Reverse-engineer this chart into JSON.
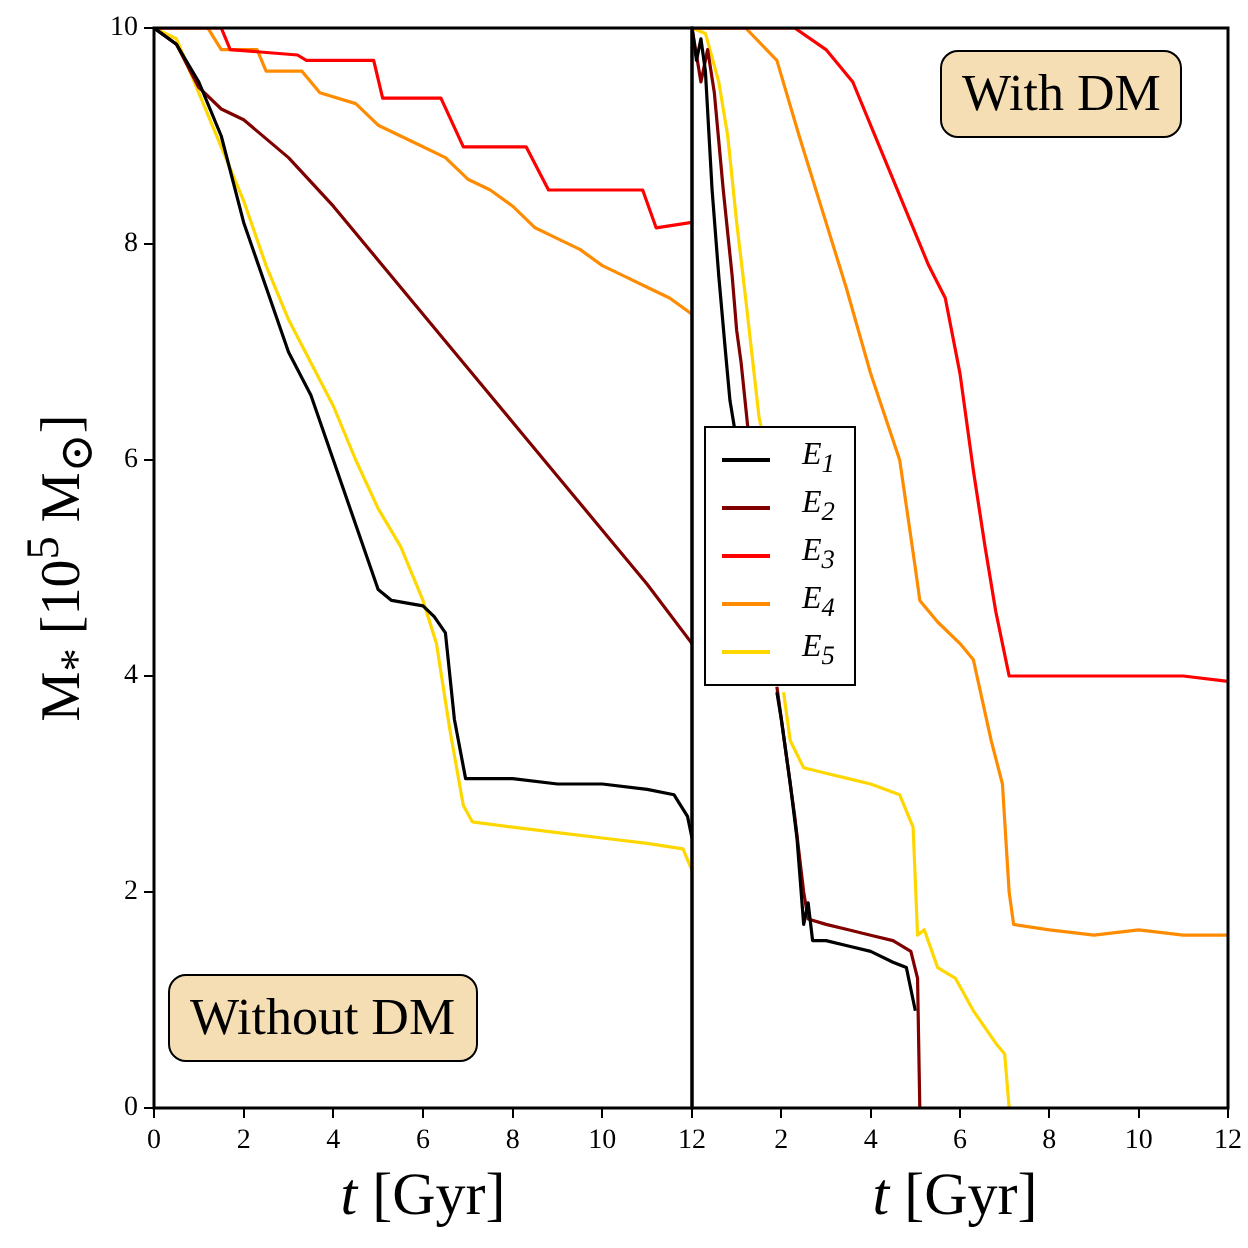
{
  "chart_data": [
    {
      "type": "line",
      "xlabel": "t [Gyr]",
      "ylabel": "M$_{*}$ [10$^{5}$ M$_{⊙}$]",
      "annotations": [
        "Without DM"
      ],
      "xlim": [
        0,
        12
      ],
      "xticks": [
        0,
        2,
        4,
        6,
        8,
        10,
        12
      ],
      "ylim": [
        0,
        10
      ],
      "yticks": [
        0,
        2,
        4,
        6,
        8,
        10
      ],
      "grid": false,
      "legend": false,
      "marker": "none",
      "line_style": "solid",
      "series": [
        {
          "color": "#000000",
          "x": [
            0,
            0.5,
            1,
            1.5,
            2,
            2.5,
            3,
            3.5,
            4,
            4.5,
            5,
            5.3,
            6,
            6.25,
            6.5,
            6.7,
            6.95,
            7.5,
            8,
            9,
            10,
            11,
            11.6,
            11.9,
            12
          ],
          "values": [
            10,
            9.85,
            9.5,
            9.0,
            8.2,
            7.6,
            7.0,
            6.6,
            6.0,
            5.4,
            4.8,
            4.7,
            4.65,
            4.55,
            4.4,
            3.6,
            3.05,
            3.05,
            3.05,
            3.0,
            3.0,
            2.95,
            2.9,
            2.7,
            2.5
          ]
        },
        {
          "color": "#800000",
          "x": [
            0,
            0.5,
            1,
            1.5,
            2,
            3,
            4,
            5,
            6,
            7,
            8,
            9,
            10,
            11,
            12
          ],
          "values": [
            10,
            9.85,
            9.45,
            9.25,
            9.15,
            8.8,
            8.35,
            7.85,
            7.35,
            6.85,
            6.35,
            5.85,
            5.35,
            4.85,
            4.3
          ]
        },
        {
          "color": "#ff0000",
          "x": [
            0,
            1.5,
            1.7,
            3.2,
            3.4,
            4.9,
            5.1,
            6.4,
            6.9,
            8.3,
            8.8,
            10.9,
            11.2,
            12
          ],
          "values": [
            10,
            10,
            9.8,
            9.75,
            9.7,
            9.7,
            9.35,
            9.35,
            8.9,
            8.9,
            8.5,
            8.5,
            8.15,
            8.2
          ]
        },
        {
          "color": "#ff8c00",
          "x": [
            0,
            1.2,
            1.5,
            2.3,
            2.5,
            3.3,
            3.7,
            4.5,
            5,
            5.5,
            6,
            6.5,
            7,
            7.5,
            8,
            8.5,
            9,
            9.5,
            10,
            10.5,
            11,
            11.5,
            12
          ],
          "values": [
            10,
            10,
            9.8,
            9.8,
            9.6,
            9.6,
            9.4,
            9.3,
            9.1,
            9.0,
            8.9,
            8.8,
            8.6,
            8.5,
            8.35,
            8.15,
            8.05,
            7.95,
            7.8,
            7.7,
            7.6,
            7.5,
            7.35
          ]
        },
        {
          "color": "#ffd700",
          "x": [
            0,
            0.5,
            1,
            1.5,
            2,
            2.5,
            3,
            3.5,
            4,
            4.5,
            5,
            5.5,
            6,
            6.3,
            6.6,
            6.9,
            7.1,
            8,
            9,
            10,
            11,
            11.8,
            12
          ],
          "values": [
            10,
            9.9,
            9.4,
            8.9,
            8.4,
            7.8,
            7.3,
            6.9,
            6.5,
            6.0,
            5.55,
            5.2,
            4.7,
            4.3,
            3.5,
            2.8,
            2.65,
            2.6,
            2.55,
            2.5,
            2.45,
            2.4,
            2.2
          ]
        }
      ]
    },
    {
      "type": "line",
      "xlabel": "t [Gyr]",
      "annotations": [
        "With DM"
      ],
      "xlim": [
        0,
        12
      ],
      "xticks": [
        {
          "value": 0,
          "label": null
        },
        2,
        4,
        6,
        8,
        10,
        12
      ],
      "ylim": [
        0,
        10
      ],
      "yticks": [
        0,
        2,
        4,
        6,
        8,
        10
      ],
      "tick_labels": "x",
      "grid": false,
      "legend": "center left",
      "marker": "none",
      "line_style": "solid",
      "series": [
        {
          "name": "E$_{1}$",
          "color": "#000000",
          "x": [
            0,
            0.1,
            0.2,
            0.3,
            0.45,
            0.6,
            0.75,
            0.85,
            0.95,
            1.2,
            1.9,
            2.0,
            2.2,
            2.35,
            2.5,
            2.6,
            2.7,
            3,
            3.5,
            4,
            4.5,
            4.8,
            4.95,
            5.0
          ],
          "values": [
            10,
            9.7,
            9.9,
            9.6,
            8.5,
            7.7,
            7.0,
            6.55,
            6.3,
            null,
            3.85,
            3.6,
            3.0,
            2.5,
            1.7,
            1.9,
            1.55,
            1.55,
            1.5,
            1.45,
            1.35,
            1.3,
            1.0,
            0.9
          ]
        },
        {
          "name": "E$_{2}$",
          "color": "#800000",
          "x": [
            0,
            0.2,
            0.35,
            0.5,
            0.7,
            0.9,
            1.0,
            1.1,
            1.2,
            1.25,
            1.5,
            1.9,
            2.3,
            2.5,
            2.6,
            3,
            3.5,
            4,
            4.5,
            4.9,
            5.05,
            5.1
          ],
          "values": [
            10,
            9.5,
            9.8,
            9.4,
            8.5,
            7.7,
            7.2,
            6.9,
            6.5,
            6.3,
            null,
            3.9,
            2.7,
            2.0,
            1.75,
            1.7,
            1.65,
            1.6,
            1.55,
            1.45,
            1.2,
            0
          ]
        },
        {
          "name": "E$_{3}$",
          "color": "#ff0000",
          "x": [
            0,
            2.3,
            3.0,
            3.6,
            4.2,
            4.8,
            5.3,
            5.67,
            6.0,
            6.3,
            6.56,
            6.8,
            7.0,
            7.1,
            8,
            9,
            10,
            11,
            12
          ],
          "values": [
            10,
            10,
            9.8,
            9.5,
            8.9,
            8.3,
            7.8,
            7.5,
            6.8,
            5.9,
            5.2,
            4.6,
            4.2,
            4.0,
            4.0,
            4.0,
            4.0,
            4.0,
            3.95
          ]
        },
        {
          "name": "E$_{4}$",
          "color": "#ff8c00",
          "x": [
            0,
            1.2,
            1.9,
            2.4,
            3.0,
            3.45,
            4.0,
            4.65,
            5.0,
            5.1,
            5.5,
            6.0,
            6.3,
            6.7,
            6.95,
            7.1,
            7.2,
            8,
            9,
            10,
            11,
            12
          ],
          "values": [
            10,
            10,
            9.7,
            9.0,
            8.2,
            7.6,
            6.8,
            6.0,
            5.0,
            4.7,
            4.5,
            4.3,
            4.15,
            3.4,
            3.0,
            2.0,
            1.7,
            1.65,
            1.6,
            1.65,
            1.6,
            1.6
          ]
        },
        {
          "name": "E$_{5}$",
          "color": "#ffd700",
          "x": [
            0,
            0.3,
            0.6,
            0.8,
            1.0,
            1.2,
            1.5,
            1.55,
            1.8,
            2.05,
            2.2,
            2.5,
            3,
            3.5,
            4,
            4.65,
            4.95,
            5.05,
            5.2,
            5.5,
            5.9,
            6.3,
            6.8,
            7.0,
            7.1
          ],
          "values": [
            10,
            9.95,
            9.5,
            9.0,
            8.2,
            7.5,
            6.4,
            6.3,
            null,
            3.85,
            3.4,
            3.15,
            3.1,
            3.05,
            3.0,
            2.9,
            2.6,
            1.6,
            1.65,
            1.3,
            1.2,
            0.9,
            0.6,
            0.5,
            0
          ]
        }
      ]
    }
  ]
}
